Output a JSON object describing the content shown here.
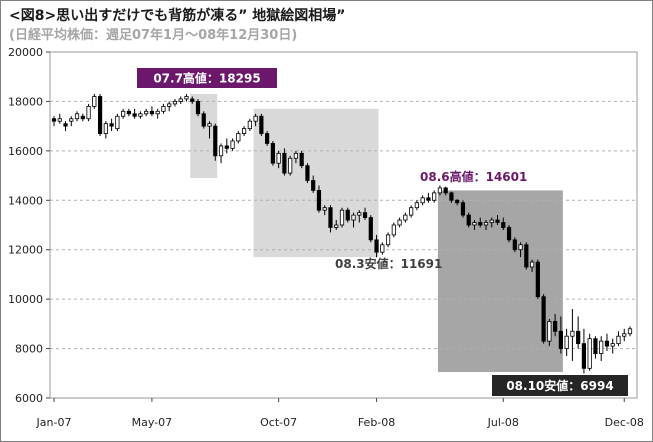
{
  "chart_data": {
    "type": "candlestick",
    "title": "<図8>思い出すだけでも背筋が凍る” 地獄絵図相場”",
    "subtitle": "(日経平均株価：週足07年1月～08年12月30日)",
    "x_ticks": [
      "Jan-07",
      "May-07",
      "Oct-07",
      "Feb-08",
      "Jul-08",
      "Dec-08"
    ],
    "ylim": [
      6000,
      20000
    ],
    "y_ticks": [
      6000,
      8000,
      10000,
      12000,
      14000,
      16000,
      18000,
      20000
    ],
    "grid": true,
    "series": [
      {
        "values": [
          [
            17300,
            17400,
            17000,
            17200
          ],
          [
            17200,
            17500,
            17100,
            17300
          ],
          [
            17100,
            17200,
            16800,
            17000
          ],
          [
            17200,
            17400,
            17000,
            17300
          ],
          [
            17300,
            17600,
            17200,
            17500
          ],
          [
            17400,
            17500,
            17200,
            17300
          ],
          [
            17300,
            17900,
            17200,
            17800
          ],
          [
            17800,
            18300,
            17700,
            18200
          ],
          [
            18200,
            18300,
            16600,
            16700
          ],
          [
            16700,
            17200,
            16500,
            17100
          ],
          [
            17100,
            17300,
            16800,
            17000
          ],
          [
            16900,
            17500,
            16800,
            17400
          ],
          [
            17400,
            17700,
            17300,
            17600
          ],
          [
            17600,
            17700,
            17400,
            17500
          ],
          [
            17500,
            17700,
            17300,
            17400
          ],
          [
            17400,
            17600,
            17300,
            17500
          ],
          [
            17500,
            17700,
            17400,
            17600
          ],
          [
            17600,
            17800,
            17400,
            17500
          ],
          [
            17500,
            17700,
            17300,
            17600
          ],
          [
            17600,
            17900,
            17500,
            17800
          ],
          [
            17800,
            18000,
            17600,
            17900
          ],
          [
            17900,
            18100,
            17800,
            18000
          ],
          [
            18000,
            18200,
            17900,
            18100
          ],
          [
            18100,
            18295,
            18000,
            18200
          ],
          [
            18100,
            18200,
            17900,
            18000
          ],
          [
            18000,
            18100,
            17400,
            17500
          ],
          [
            17500,
            17600,
            16900,
            17000
          ],
          [
            17000,
            17200,
            16500,
            17100
          ],
          [
            17000,
            17100,
            15600,
            15800
          ],
          [
            15800,
            16300,
            15500,
            16200
          ],
          [
            16200,
            16500,
            15900,
            16100
          ],
          [
            16100,
            16500,
            16000,
            16400
          ],
          [
            16400,
            16800,
            16300,
            16700
          ],
          [
            16700,
            17000,
            16600,
            16900
          ],
          [
            16900,
            17300,
            16800,
            17200
          ],
          [
            17200,
            17500,
            17000,
            17400
          ],
          [
            17400,
            17500,
            16600,
            16700
          ],
          [
            16700,
            16800,
            16200,
            16300
          ],
          [
            16300,
            16400,
            15400,
            15500
          ],
          [
            15500,
            16000,
            15300,
            15900
          ],
          [
            15900,
            16100,
            15000,
            15100
          ],
          [
            15100,
            15800,
            15000,
            15700
          ],
          [
            15700,
            16000,
            15500,
            15900
          ],
          [
            15900,
            16000,
            15300,
            15400
          ],
          [
            15400,
            15500,
            14700,
            14800
          ],
          [
            14800,
            15000,
            14300,
            14400
          ],
          [
            14400,
            14600,
            13500,
            13600
          ],
          [
            13600,
            13800,
            13400,
            13700
          ],
          [
            13700,
            13800,
            12700,
            12900
          ],
          [
            12900,
            13200,
            12800,
            13000
          ],
          [
            13000,
            13700,
            12900,
            13600
          ],
          [
            13600,
            13700,
            13100,
            13200
          ],
          [
            13200,
            13500,
            12900,
            13400
          ],
          [
            13400,
            13600,
            13100,
            13500
          ],
          [
            13500,
            13700,
            13200,
            13300
          ],
          [
            13300,
            13400,
            12300,
            12400
          ],
          [
            12400,
            12600,
            11691,
            11900
          ],
          [
            11900,
            12300,
            11800,
            12200
          ],
          [
            12200,
            12700,
            12100,
            12600
          ],
          [
            12600,
            13100,
            12500,
            13000
          ],
          [
            13000,
            13300,
            12900,
            13200
          ],
          [
            13200,
            13500,
            13100,
            13400
          ],
          [
            13400,
            13800,
            13300,
            13700
          ],
          [
            13700,
            14000,
            13600,
            13900
          ],
          [
            13900,
            14200,
            13800,
            14100
          ],
          [
            14100,
            14300,
            13900,
            14000
          ],
          [
            14000,
            14400,
            13900,
            14300
          ],
          [
            14300,
            14601,
            14200,
            14500
          ],
          [
            14500,
            14550,
            14200,
            14300
          ],
          [
            14300,
            14350,
            13900,
            14000
          ],
          [
            14000,
            14050,
            13800,
            13900
          ],
          [
            13900,
            14000,
            13300,
            13400
          ],
          [
            13400,
            13500,
            12900,
            13000
          ],
          [
            13000,
            13200,
            12800,
            13100
          ],
          [
            13100,
            13300,
            12900,
            13000
          ],
          [
            13000,
            13200,
            12800,
            13100
          ],
          [
            13100,
            13300,
            12900,
            13200
          ],
          [
            13200,
            13400,
            13000,
            13100
          ],
          [
            13100,
            13300,
            12800,
            12900
          ],
          [
            12900,
            13000,
            12300,
            12400
          ],
          [
            12400,
            12500,
            11900,
            12000
          ],
          [
            12000,
            12300,
            11700,
            12200
          ],
          [
            12200,
            12300,
            11200,
            11300
          ],
          [
            11300,
            11600,
            11100,
            11500
          ],
          [
            11500,
            11600,
            10000,
            10100
          ],
          [
            10100,
            10200,
            8200,
            8300
          ],
          [
            8300,
            9200,
            8100,
            9100
          ],
          [
            9100,
            9400,
            8500,
            8700
          ],
          [
            8700,
            9300,
            7800,
            8000
          ],
          [
            8000,
            8800,
            7700,
            8500
          ],
          [
            8500,
            9600,
            7500,
            8700
          ],
          [
            8700,
            9300,
            8000,
            8200
          ],
          [
            8200,
            8800,
            6994,
            7200
          ],
          [
            7200,
            8600,
            7100,
            8400
          ],
          [
            8400,
            8500,
            7600,
            7800
          ],
          [
            7800,
            8500,
            7500,
            8300
          ],
          [
            8300,
            8600,
            7900,
            8100
          ],
          [
            8100,
            8400,
            7800,
            8200
          ],
          [
            8200,
            8700,
            8100,
            8500
          ],
          [
            8500,
            8800,
            8300,
            8600
          ],
          [
            8600,
            8900,
            8500,
            8800
          ]
        ]
      }
    ],
    "annotations": [
      {
        "text": "07.7高値：18295"
      },
      {
        "text": "08.6高値：14601"
      },
      {
        "text": "08.3安値：11691"
      },
      {
        "text": "08.10安値：6994"
      }
    ],
    "colors": {
      "up": "#ffffff",
      "down": "#000000",
      "highlight_light": "#d9d9d9",
      "highlight_dark": "#a6a6a6",
      "label_purple": "#6b176b",
      "label_dark": "#262626",
      "label_gray": "#404040"
    }
  }
}
